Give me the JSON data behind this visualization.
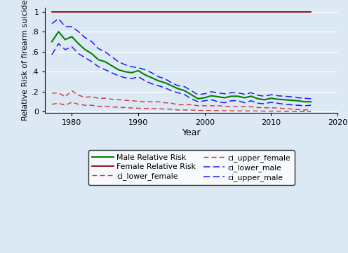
{
  "years": [
    1977,
    1978,
    1979,
    1980,
    1981,
    1982,
    1983,
    1984,
    1985,
    1986,
    1987,
    1988,
    1989,
    1990,
    1991,
    1992,
    1993,
    1994,
    1995,
    1996,
    1997,
    1998,
    1999,
    2000,
    2001,
    2002,
    2003,
    2004,
    2005,
    2006,
    2007,
    2008,
    2009,
    2010,
    2011,
    2012,
    2013,
    2014,
    2015,
    2016
  ],
  "male_rr": [
    0.7,
    0.8,
    0.72,
    0.75,
    0.68,
    0.62,
    0.58,
    0.52,
    0.5,
    0.46,
    0.42,
    0.4,
    0.39,
    0.41,
    0.37,
    0.34,
    0.31,
    0.29,
    0.26,
    0.23,
    0.21,
    0.17,
    0.13,
    0.14,
    0.16,
    0.15,
    0.14,
    0.155,
    0.155,
    0.14,
    0.155,
    0.13,
    0.12,
    0.135,
    0.125,
    0.12,
    0.115,
    0.11,
    0.1,
    0.1
  ],
  "female_rr": [
    1.0,
    1.0,
    1.0,
    1.0,
    1.0,
    1.0,
    1.0,
    1.0,
    1.0,
    1.0,
    1.0,
    1.0,
    1.0,
    1.0,
    1.0,
    1.0,
    1.0,
    1.0,
    1.0,
    1.0,
    1.0,
    1.0,
    1.0,
    1.0,
    1.0,
    1.0,
    1.0,
    1.0,
    1.0,
    1.0,
    1.0,
    1.0,
    1.0,
    1.0,
    1.0,
    1.0,
    1.0,
    1.0,
    1.0,
    1.0
  ],
  "ci_upper_male": [
    0.88,
    0.93,
    0.85,
    0.85,
    0.8,
    0.74,
    0.7,
    0.63,
    0.6,
    0.55,
    0.5,
    0.47,
    0.45,
    0.44,
    0.42,
    0.39,
    0.35,
    0.33,
    0.29,
    0.26,
    0.25,
    0.21,
    0.17,
    0.18,
    0.2,
    0.19,
    0.18,
    0.19,
    0.19,
    0.175,
    0.19,
    0.165,
    0.155,
    0.17,
    0.16,
    0.155,
    0.15,
    0.14,
    0.135,
    0.13
  ],
  "ci_lower_male": [
    0.57,
    0.68,
    0.62,
    0.65,
    0.58,
    0.54,
    0.5,
    0.45,
    0.42,
    0.39,
    0.36,
    0.34,
    0.33,
    0.35,
    0.31,
    0.28,
    0.26,
    0.24,
    0.21,
    0.19,
    0.17,
    0.13,
    0.1,
    0.11,
    0.12,
    0.1,
    0.09,
    0.11,
    0.11,
    0.09,
    0.11,
    0.085,
    0.08,
    0.095,
    0.085,
    0.075,
    0.07,
    0.065,
    0.06,
    0.065
  ],
  "ci_upper_female": [
    0.185,
    0.19,
    0.15,
    0.21,
    0.165,
    0.145,
    0.15,
    0.135,
    0.135,
    0.125,
    0.12,
    0.115,
    0.11,
    0.105,
    0.1,
    0.1,
    0.1,
    0.09,
    0.085,
    0.07,
    0.07,
    0.07,
    0.06,
    0.06,
    0.06,
    0.06,
    0.055,
    0.052,
    0.05,
    0.05,
    0.05,
    0.042,
    0.04,
    0.04,
    0.038,
    0.032,
    0.028,
    0.022,
    0.018,
    0.018
  ],
  "ci_lower_female": [
    0.075,
    0.085,
    0.065,
    0.095,
    0.075,
    0.065,
    0.065,
    0.055,
    0.055,
    0.048,
    0.045,
    0.042,
    0.038,
    0.035,
    0.033,
    0.032,
    0.032,
    0.026,
    0.025,
    0.018,
    0.017,
    0.017,
    0.013,
    0.012,
    0.012,
    0.011,
    0.01,
    0.009,
    0.008,
    0.008,
    0.008,
    0.007,
    0.006,
    0.006,
    0.005,
    0.004,
    0.003,
    0.002,
    0.001,
    0.001
  ],
  "color_male": "#008000",
  "color_female": "#8b0000",
  "color_ci_male": "#1a1aff",
  "color_ci_female": "#cc3333",
  "bg_color": "#dce9f5",
  "plot_bg": "#dce9f5",
  "ylabel": "Relative Risk of firearm suicide",
  "xlabel": "Year",
  "xlim": [
    1976,
    2020
  ],
  "ylim": [
    -0.01,
    1.04
  ],
  "yticks": [
    0,
    0.2,
    0.4,
    0.6,
    0.8,
    1.0
  ],
  "yticklabels": [
    "0",
    ".2",
    ".4",
    ".6",
    ".8",
    "1"
  ],
  "xticks": [
    1980,
    1990,
    2000,
    2010,
    2020
  ]
}
